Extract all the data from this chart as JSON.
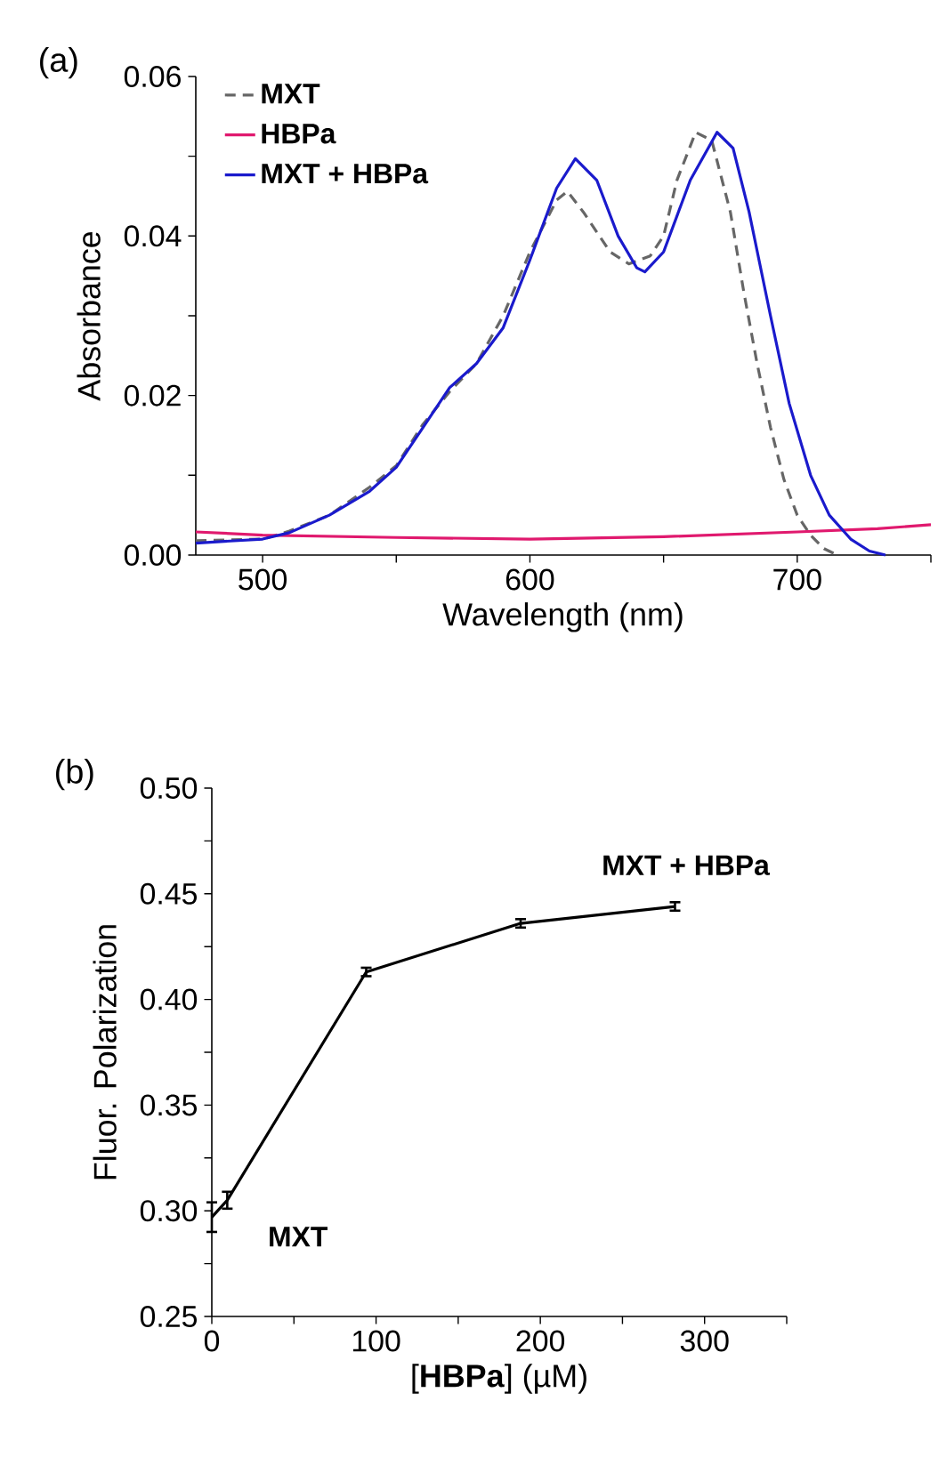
{
  "chart_data": [
    {
      "type": "line",
      "title": "(a)",
      "xlabel": "Wavelength (nm)",
      "ylabel": "Absorbance",
      "xlim": [
        475,
        750
      ],
      "ylim": [
        0,
        0.06
      ],
      "xticks": [
        500,
        {
          "value": 550,
          "label": null
        },
        600,
        {
          "value": 650,
          "label": null
        },
        700,
        {
          "value": 750,
          "label": null
        }
      ],
      "yticks": [
        {
          "value": 0,
          "label": "0.00"
        },
        {
          "value": 0.01,
          "label": null
        },
        0.02,
        {
          "value": 0.03,
          "label": null
        },
        0.04,
        {
          "value": 0.05,
          "label": null
        },
        0.06
      ],
      "legend": "top left",
      "series": [
        {
          "name": "MXT",
          "color": "#666666",
          "line_style": "dashed",
          "x": [
            475,
            500,
            510,
            525,
            540,
            550,
            560,
            570,
            580,
            590,
            600,
            610,
            614,
            620,
            630,
            637,
            645,
            650,
            655,
            662,
            668,
            675,
            680,
            685,
            690,
            695,
            700,
            705,
            710,
            715
          ],
          "values": [
            0.0018,
            0.002,
            0.003,
            0.005,
            0.0085,
            0.0112,
            0.0164,
            0.0205,
            0.024,
            0.03,
            0.038,
            0.0445,
            0.0456,
            0.043,
            0.038,
            0.0365,
            0.0375,
            0.04,
            0.047,
            0.053,
            0.052,
            0.043,
            0.033,
            0.024,
            0.016,
            0.0095,
            0.005,
            0.0025,
            0.0008,
            0.0
          ]
        },
        {
          "name": "HBPa",
          "color": "#e0196e",
          "line_style": "solid",
          "x": [
            475,
            500,
            550,
            600,
            650,
            700,
            730,
            750
          ],
          "values": [
            0.0029,
            0.0025,
            0.0022,
            0.002,
            0.0023,
            0.0029,
            0.0033,
            0.0038
          ]
        },
        {
          "name": "MXT + HBPa",
          "color": "#1a1acc",
          "line_style": "solid",
          "x": [
            475,
            500,
            510,
            525,
            540,
            550,
            560,
            570,
            580,
            590,
            600,
            610,
            617,
            625,
            633,
            640,
            643,
            650,
            660,
            670,
            676,
            682,
            690,
            697,
            705,
            712,
            720,
            727,
            733
          ],
          "values": [
            0.0015,
            0.002,
            0.0028,
            0.005,
            0.008,
            0.011,
            0.016,
            0.021,
            0.024,
            0.0285,
            0.037,
            0.046,
            0.0497,
            0.047,
            0.04,
            0.036,
            0.0355,
            0.038,
            0.047,
            0.053,
            0.051,
            0.043,
            0.03,
            0.019,
            0.01,
            0.005,
            0.002,
            0.0005,
            0.0
          ]
        }
      ]
    },
    {
      "type": "line",
      "title": "(b)",
      "xlabel": "[**HBPa**] (µM)",
      "ylabel": "Fluor. Polarization",
      "xlim": [
        0,
        350
      ],
      "ylim": [
        0.25,
        0.5
      ],
      "xticks": [
        0,
        {
          "value": 50,
          "label": null
        },
        100,
        {
          "value": 150,
          "label": null
        },
        200,
        {
          "value": 250,
          "label": null
        },
        300,
        {
          "value": 350,
          "label": null
        }
      ],
      "yticks": [
        0.25,
        {
          "value": 0.275,
          "label": null
        },
        {
          "value": 0.3,
          "label": "0.30"
        },
        {
          "value": 0.325,
          "label": null
        },
        0.35,
        {
          "value": 0.375,
          "label": null
        },
        {
          "value": 0.4,
          "label": "0.40"
        },
        {
          "value": 0.425,
          "label": null
        },
        0.45,
        {
          "value": 0.475,
          "label": null
        },
        {
          "value": 0.5,
          "label": "0.50"
        }
      ],
      "marker": "none",
      "color": "#000000",
      "x": [
        0,
        9.4,
        94,
        188,
        282
      ],
      "values": [
        0.297,
        0.305,
        0.413,
        0.436,
        0.444
      ],
      "errors": [
        0.007,
        0.004,
        0.002,
        0.002,
        0.002
      ],
      "annotations": [
        {
          "text": "MXT",
          "x": 0,
          "y": 0.297
        },
        {
          "text": "MXT + HBPa",
          "x": 282,
          "y": 0.444
        }
      ]
    }
  ]
}
